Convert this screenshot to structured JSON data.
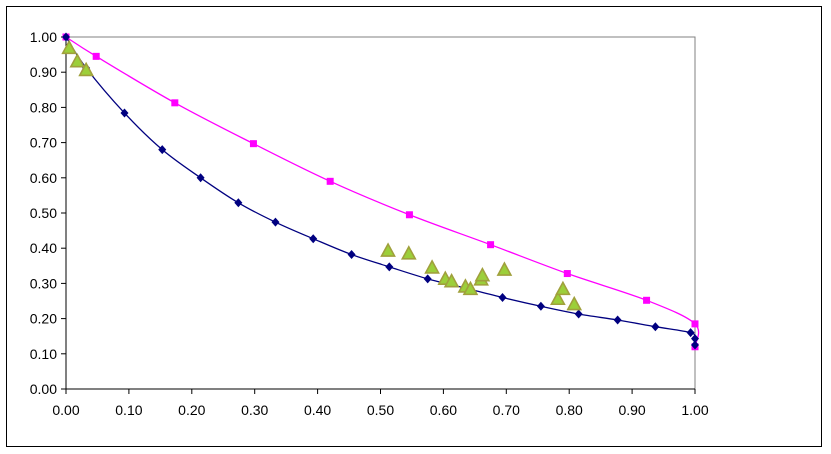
{
  "chart_data": {
    "type": "scatter",
    "title": "",
    "xlabel": "",
    "ylabel": "",
    "xlim": [
      0,
      1
    ],
    "ylim": [
      0,
      1
    ],
    "x_ticks": [
      "0.00",
      "0.10",
      "0.20",
      "0.30",
      "0.40",
      "0.50",
      "0.60",
      "0.70",
      "0.80",
      "0.90",
      "1.00"
    ],
    "y_ticks": [
      "0.00",
      "0.10",
      "0.20",
      "0.30",
      "0.40",
      "0.50",
      "0.60",
      "0.70",
      "0.80",
      "0.90",
      "1.00"
    ],
    "grid": false,
    "legend": "none",
    "series": [
      {
        "color": "#ff00ff",
        "marker": "square",
        "line": true,
        "points": [
          [
            0.0,
            1.0
          ],
          [
            0.048,
            0.945
          ],
          [
            0.173,
            0.813
          ],
          [
            0.298,
            0.697
          ],
          [
            0.42,
            0.59
          ],
          [
            0.546,
            0.495
          ],
          [
            0.675,
            0.41
          ],
          [
            0.797,
            0.328
          ],
          [
            0.923,
            0.252
          ],
          [
            1.0,
            0.185
          ],
          [
            1.0,
            0.12
          ]
        ]
      },
      {
        "color": "#000080",
        "marker": "diamond",
        "line": true,
        "points": [
          [
            0.0,
            1.0
          ],
          [
            0.032,
            0.912
          ],
          [
            0.093,
            0.784
          ],
          [
            0.153,
            0.68
          ],
          [
            0.214,
            0.6
          ],
          [
            0.274,
            0.529
          ],
          [
            0.333,
            0.474
          ],
          [
            0.393,
            0.427
          ],
          [
            0.454,
            0.382
          ],
          [
            0.514,
            0.347
          ],
          [
            0.575,
            0.313
          ],
          [
            0.634,
            0.287
          ],
          [
            0.694,
            0.26
          ],
          [
            0.755,
            0.235
          ],
          [
            0.815,
            0.213
          ],
          [
            0.877,
            0.196
          ],
          [
            0.937,
            0.177
          ],
          [
            0.993,
            0.16
          ],
          [
            1.0,
            0.143
          ],
          [
            1.0,
            0.125
          ]
        ]
      },
      {
        "color": "#a0a03c",
        "marker": "triangle",
        "line": false,
        "points": [
          [
            0.005,
            0.968
          ],
          [
            0.018,
            0.93
          ],
          [
            0.032,
            0.905
          ],
          [
            0.512,
            0.392
          ],
          [
            0.545,
            0.384
          ],
          [
            0.582,
            0.344
          ],
          [
            0.603,
            0.312
          ],
          [
            0.613,
            0.305
          ],
          [
            0.635,
            0.29
          ],
          [
            0.643,
            0.283
          ],
          [
            0.66,
            0.31
          ],
          [
            0.662,
            0.322
          ],
          [
            0.697,
            0.338
          ],
          [
            0.782,
            0.255
          ],
          [
            0.79,
            0.283
          ],
          [
            0.808,
            0.24
          ]
        ]
      }
    ]
  }
}
